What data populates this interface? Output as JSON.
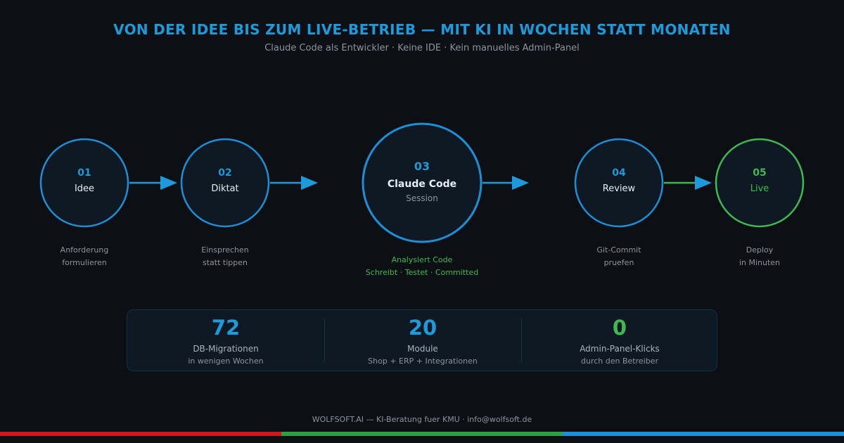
{
  "header": {
    "title": "VON DER IDEE BIS ZUM LIVE-BETRIEB — MIT KI IN WOCHEN STATT MONATEN",
    "subtitle": "Claude Code als Entwickler · Keine IDE · Kein manuelles Admin-Panel"
  },
  "colors": {
    "accent_blue": "#1d9ad9",
    "accent_green": "#3fb950",
    "background": "#0c1015",
    "bar_red": "#d0161b",
    "bar_green": "#2ea043",
    "bar_blue": "#1d8fd6"
  },
  "steps": [
    {
      "num": "01",
      "name": "Idee",
      "desc1": "Anforderung",
      "desc2": "formulieren"
    },
    {
      "num": "02",
      "name": "Diktat",
      "desc1": "Einsprechen",
      "desc2": "statt tippen"
    },
    {
      "num": "03",
      "name": "Claude Code",
      "sub": "Session",
      "desc1": "Analysiert Code",
      "desc2": "Schreibt · Testet · Committed"
    },
    {
      "num": "04",
      "name": "Review",
      "desc1": "Git-Commit",
      "desc2": "pruefen"
    },
    {
      "num": "05",
      "name": "Live",
      "desc1": "Deploy",
      "desc2": "in Minuten"
    }
  ],
  "stats": [
    {
      "value": "72",
      "label": "DB-Migrationen",
      "sub": "in wenigen Wochen"
    },
    {
      "value": "20",
      "label": "Module",
      "sub": "Shop + ERP + Integrationen"
    },
    {
      "value": "0",
      "label": "Admin-Panel-Klicks",
      "sub": "durch den Betreiber"
    }
  ],
  "footer": "WOLFSOFT.AI — KI-Beratung fuer KMU · info@wolfsoft.de"
}
